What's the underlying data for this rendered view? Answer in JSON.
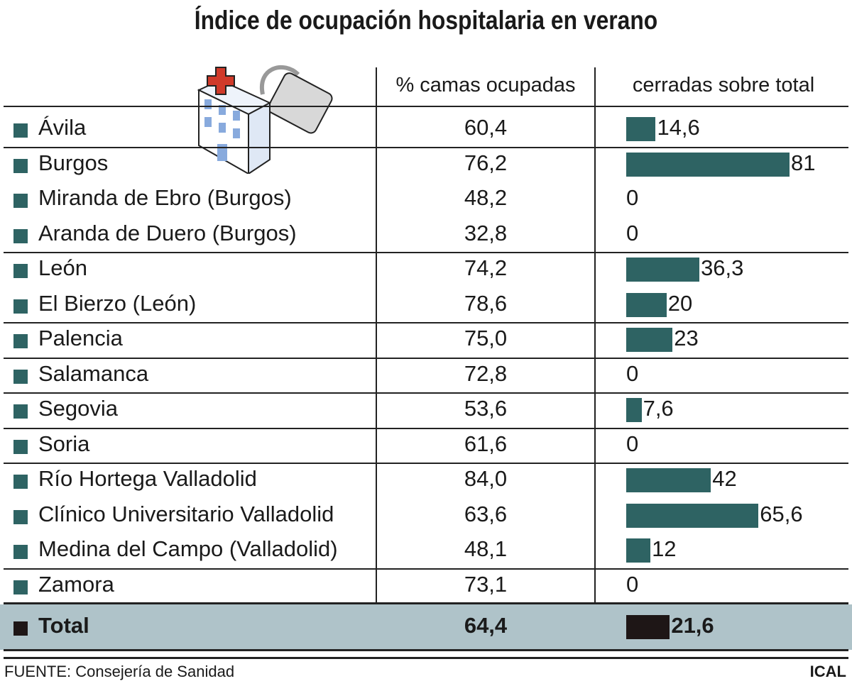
{
  "chart_data": {
    "type": "table",
    "title": "Índice de ocupación hospitalaria en verano",
    "columns": [
      "% camas ocupadas",
      "cerradas sobre total"
    ],
    "rows": [
      {
        "name": "Ávila",
        "ocupadas": "60,4",
        "cerradas": 14.6,
        "cerradas_label": "14,6"
      },
      {
        "name": "Burgos",
        "ocupadas": "76,2",
        "cerradas": 81,
        "cerradas_label": "81"
      },
      {
        "name": "Miranda de Ebro (Burgos)",
        "ocupadas": "48,2",
        "cerradas": 0,
        "cerradas_label": "0"
      },
      {
        "name": "Aranda de Duero (Burgos)",
        "ocupadas": "32,8",
        "cerradas": 0,
        "cerradas_label": "0"
      },
      {
        "name": "León",
        "ocupadas": "74,2",
        "cerradas": 36.3,
        "cerradas_label": "36,3"
      },
      {
        "name": "El Bierzo (León)",
        "ocupadas": "78,6",
        "cerradas": 20,
        "cerradas_label": "20"
      },
      {
        "name": "Palencia",
        "ocupadas": "75,0",
        "cerradas": 23,
        "cerradas_label": "23"
      },
      {
        "name": "Salamanca",
        "ocupadas": "72,8",
        "cerradas": 0,
        "cerradas_label": "0"
      },
      {
        "name": "Segovia",
        "ocupadas": "53,6",
        "cerradas": 7.6,
        "cerradas_label": "7,6"
      },
      {
        "name": "Soria",
        "ocupadas": "61,6",
        "cerradas": 0,
        "cerradas_label": "0"
      },
      {
        "name": "Río Hortega Valladolid",
        "ocupadas": "84,0",
        "cerradas": 42,
        "cerradas_label": "42"
      },
      {
        "name": "Clínico Universitario Valladolid",
        "ocupadas": "63,6",
        "cerradas": 65.6,
        "cerradas_label": "65,6"
      },
      {
        "name": "Medina del Campo (Valladolid)",
        "ocupadas": "48,1",
        "cerradas": 12,
        "cerradas_label": "12"
      },
      {
        "name": "Zamora",
        "ocupadas": "73,1",
        "cerradas": 0,
        "cerradas_label": "0"
      }
    ],
    "total": {
      "name": "Total",
      "ocupadas": "64,4",
      "cerradas": 21.6,
      "cerradas_label": "21,6"
    },
    "colors": {
      "bar": "#2e6363",
      "total_bar": "#1e1616",
      "total_bg": "#afc3c9"
    }
  },
  "footer": {
    "source": "FUENTE: Consejería de Sanidad",
    "credit": "ICAL"
  },
  "icon": "hospital-padlock-icon"
}
